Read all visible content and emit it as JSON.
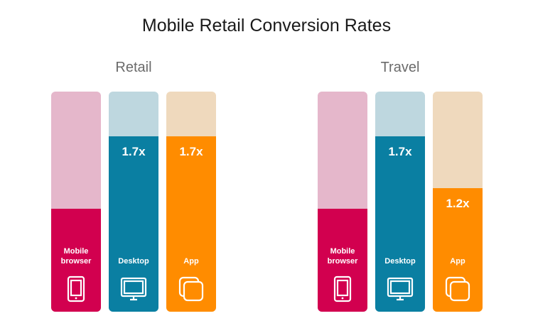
{
  "chart_data": {
    "type": "bar",
    "title": "Mobile Retail Conversion Rates",
    "categories": [
      "Mobile\nbrowser",
      "Desktop",
      "App"
    ],
    "groups": [
      {
        "name": "Retail",
        "values": [
          1,
          1.7,
          1.7
        ],
        "labels": [
          "",
          "1.7x",
          "1.7x"
        ]
      },
      {
        "name": "Travel",
        "values": [
          1,
          1.7,
          1.2
        ],
        "labels": [
          "",
          "1.7x",
          "1.2x"
        ]
      }
    ],
    "colors": {
      "mobile": "#d2004f",
      "mobile_light": "#e5b7cb",
      "desktop": "#0a7fa2",
      "desktop_light": "#bed7df",
      "app": "#ff8c00",
      "app_light": "#efd9bd"
    },
    "icons": [
      "tablet-icon",
      "monitor-icon",
      "app-windows-icon"
    ]
  }
}
